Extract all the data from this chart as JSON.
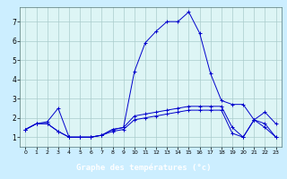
{
  "title": "Graphe des températures (°c)",
  "background_color": "#cceeff",
  "plot_bg_color": "#ddf5f5",
  "label_bar_color": "#000080",
  "label_text_color": "#ffffff",
  "grid_color": "#aacccc",
  "line_color": "#0000cc",
  "x_ticks": [
    0,
    1,
    2,
    3,
    4,
    5,
    6,
    7,
    8,
    9,
    10,
    11,
    12,
    13,
    14,
    15,
    16,
    17,
    18,
    19,
    20,
    21,
    22,
    23
  ],
  "x_tick_labels": [
    "0",
    "1",
    "2",
    "3",
    "4",
    "5",
    "6",
    "7",
    "8",
    "9",
    "10",
    "11",
    "12",
    "13",
    "14",
    "15",
    "16",
    "17",
    "18",
    "19",
    "20",
    "21",
    "22",
    "23"
  ],
  "y_ticks": [
    1,
    2,
    3,
    4,
    5,
    6,
    7
  ],
  "xlim": [
    -0.5,
    23.5
  ],
  "ylim": [
    0.5,
    7.75
  ],
  "series": [
    {
      "x": [
        0,
        1,
        2,
        3,
        4,
        5,
        6,
        7,
        8,
        9,
        10,
        11,
        12,
        13,
        14,
        15,
        16,
        17,
        18,
        19,
        20,
        21,
        22,
        23
      ],
      "y": [
        1.4,
        1.7,
        1.8,
        2.5,
        1.0,
        1.0,
        1.0,
        1.1,
        1.4,
        1.5,
        4.4,
        5.9,
        6.5,
        7.0,
        7.0,
        7.5,
        6.4,
        4.3,
        2.9,
        2.7,
        2.7,
        1.9,
        2.3,
        1.7
      ]
    },
    {
      "x": [
        0,
        1,
        2,
        3,
        4,
        5,
        6,
        7,
        8,
        9,
        10,
        11,
        12,
        13,
        14,
        15,
        16,
        17,
        18,
        19,
        20,
        21,
        22,
        23
      ],
      "y": [
        1.4,
        1.7,
        1.7,
        1.3,
        1.0,
        1.0,
        1.0,
        1.1,
        1.4,
        1.5,
        2.1,
        2.2,
        2.3,
        2.4,
        2.5,
        2.6,
        2.6,
        2.6,
        2.6,
        1.5,
        1.0,
        1.9,
        1.7,
        1.0
      ]
    },
    {
      "x": [
        0,
        1,
        2,
        3,
        4,
        5,
        6,
        7,
        8,
        9,
        10,
        11,
        12,
        13,
        14,
        15,
        16,
        17,
        18,
        19,
        20,
        21,
        22,
        23
      ],
      "y": [
        1.4,
        1.7,
        1.7,
        1.3,
        1.0,
        1.0,
        1.0,
        1.1,
        1.3,
        1.4,
        1.9,
        2.0,
        2.1,
        2.2,
        2.3,
        2.4,
        2.4,
        2.4,
        2.4,
        1.2,
        1.0,
        1.9,
        1.5,
        1.0
      ]
    }
  ]
}
